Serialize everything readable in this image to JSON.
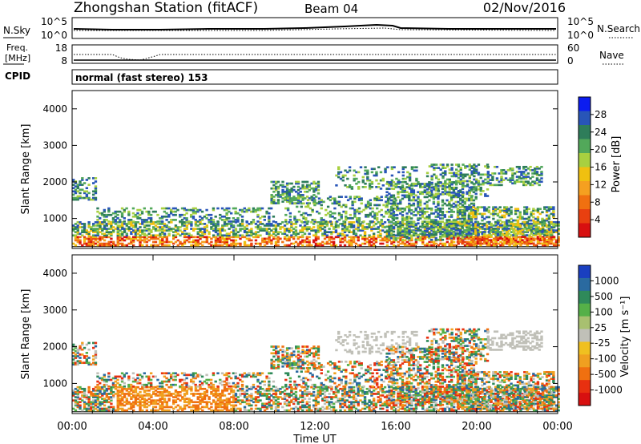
{
  "header": {
    "station": "Zhongshan Station (fitACF)",
    "beam": "Beam 04",
    "date": "02/Nov/2016"
  },
  "nsky_panel": {
    "left_label": "N.Sky",
    "ytick_top": "10^5",
    "ytick_bottom": "10^0",
    "right_top": "10^5",
    "right_bottom": "10^0",
    "right_label": "N.Search"
  },
  "freq_panel": {
    "left_label_1": "Freq.",
    "left_label_2": "[MHz]",
    "ytick_top": "18",
    "ytick_bottom": "8",
    "right_top": "60",
    "right_bottom": "0",
    "right_label": "Nave"
  },
  "cpid_panel": {
    "left_label": "CPID",
    "text": "normal (fast stereo) 153"
  },
  "chart_data": [
    {
      "type": "heatmap",
      "name": "power",
      "ylabel": "Slant Range [km]",
      "yticks": [
        "1000",
        "2000",
        "3000",
        "4000"
      ],
      "ylim": [
        180,
        4500
      ],
      "xlim": [
        0,
        24
      ],
      "colorbar": {
        "label": "Power [dB]",
        "ticks": [
          "4",
          "8",
          "12",
          "16",
          "20",
          "24",
          "28"
        ],
        "colors": [
          "#0b1cf0",
          "#2855b8",
          "#2e7d5a",
          "#52a85a",
          "#a8d040",
          "#f0c010",
          "#f5a020",
          "#f07010",
          "#e84010",
          "#d81010"
        ]
      }
    },
    {
      "type": "heatmap",
      "name": "velocity",
      "ylabel": "Slant Range [km]",
      "yticks": [
        "1000",
        "2000",
        "3000",
        "4000"
      ],
      "ylim": [
        180,
        4500
      ],
      "xlim": [
        0,
        24
      ],
      "xticks": [
        "00:00",
        "04:00",
        "08:00",
        "12:00",
        "16:00",
        "20:00",
        "00:00"
      ],
      "xlabel": "Time UT",
      "colorbar": {
        "label": "Velocity [m s⁻¹]",
        "ticks": [
          "1000",
          "500",
          "100",
          "25",
          "-25",
          "-100",
          "-500",
          "-1000"
        ],
        "colors": [
          "#1a3fc0",
          "#2a6aa0",
          "#2f8a5a",
          "#55b048",
          "#a8c070",
          "#c0c0b8",
          "#f0c020",
          "#f0a020",
          "#f07010",
          "#e83010",
          "#d81010"
        ]
      }
    }
  ]
}
